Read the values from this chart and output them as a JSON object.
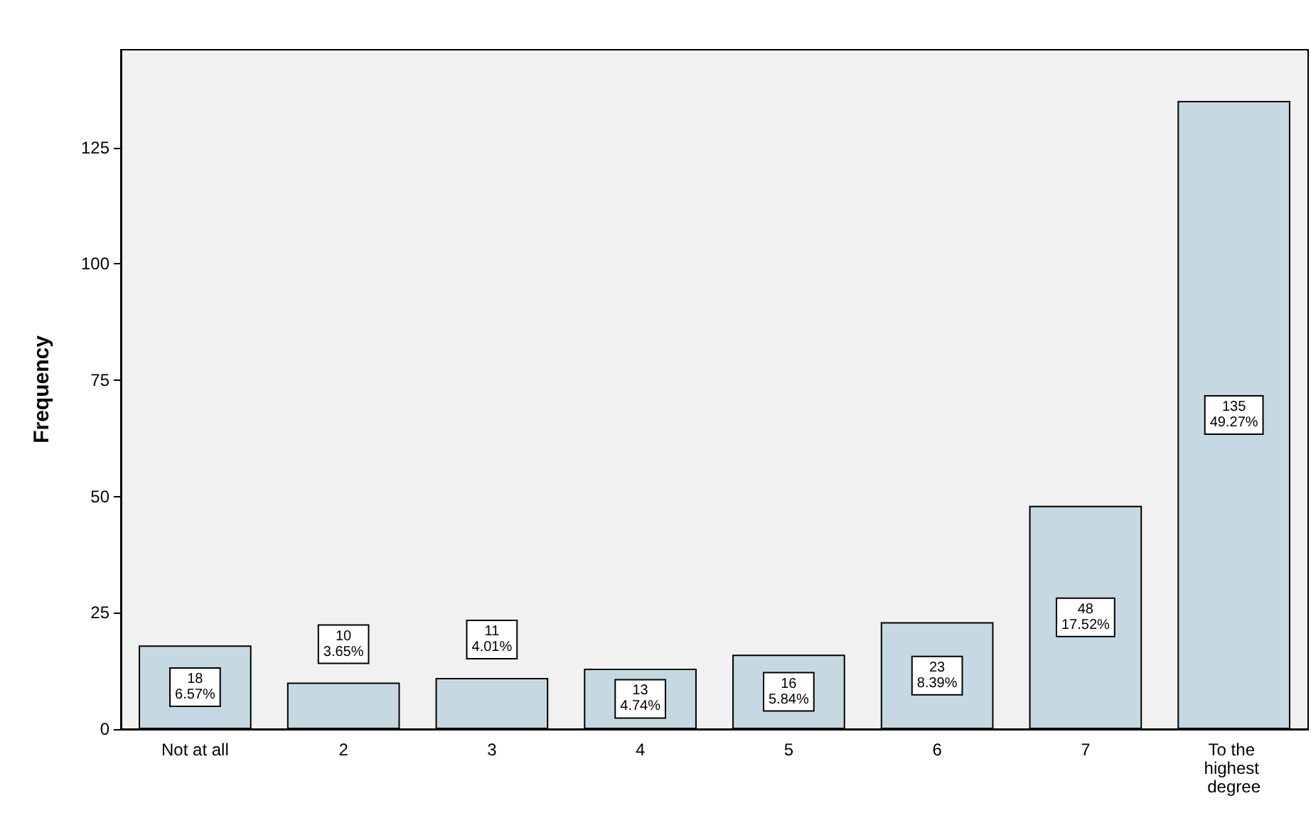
{
  "chart_data": {
    "type": "bar",
    "ylabel": "Frequency",
    "categories": [
      "Not at all",
      "2",
      "3",
      "4",
      "5",
      "6",
      "7",
      "To the highest degree"
    ],
    "values": [
      18,
      10,
      11,
      13,
      16,
      23,
      48,
      135
    ],
    "value_labels": [
      "18\n6.57%",
      "10\n3.65%",
      "11\n4.01%",
      "13\n4.74%",
      "16\n5.84%",
      "23\n8.39%",
      "48\n17.52%",
      "135\n49.27%"
    ],
    "color": "#c6d9e3",
    "ylim": [
      0,
      146
    ],
    "yticks": [
      0,
      25,
      50,
      75,
      100,
      125
    ],
    "grid": false
  }
}
